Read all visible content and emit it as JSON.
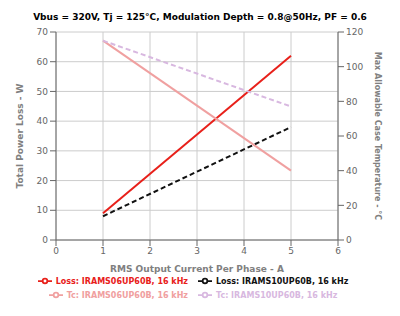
{
  "chart_data": {
    "type": "line",
    "title": "Vbus = 320V, Tj = 125°C, Modulation Depth = 0.8@50Hz, PF = 0.6",
    "x_label": "RMS Output Current Per Phase - A",
    "y_label": "Total Power Loss - W",
    "y2_label": "Max Allowable Case Temperature - °C",
    "x": [
      1.0,
      5.0
    ],
    "series": [
      {
        "name": "Loss: IRAMS06UP60B, 16 kHz",
        "color": "#e8201a",
        "values": [
          9.0,
          62.0
        ],
        "line_style": "solid"
      },
      {
        "name": "Loss: IRAMS10UP60B, 16 kHz",
        "color": "#111111",
        "values": [
          8.0,
          38.0
        ],
        "line_style": "dashed"
      },
      {
        "name": "Tc: IRAMS06UP60B, 16 kHz",
        "color": "#f0a0a0",
        "values": [
          115.0,
          40.0
        ],
        "line_style": "solid",
        "axis": "y2"
      },
      {
        "name": "Tc: IRAMS10UP60B, 16 kHz",
        "color": "#d8b8e0",
        "values": [
          115.0,
          77.0
        ],
        "line_style": "dashed",
        "axis": "y2"
      }
    ],
    "xlim": [
      0,
      6
    ],
    "ylim": [
      0,
      70
    ],
    "y2lim": [
      0,
      120
    ],
    "xticks": [
      0,
      1,
      2,
      3,
      4,
      5,
      6
    ],
    "yticks": [
      0,
      10,
      20,
      30,
      40,
      50,
      60,
      70
    ],
    "y2ticks": [
      0,
      20,
      40,
      60,
      80,
      100,
      120
    ],
    "grid": true,
    "legend": "bottom"
  }
}
